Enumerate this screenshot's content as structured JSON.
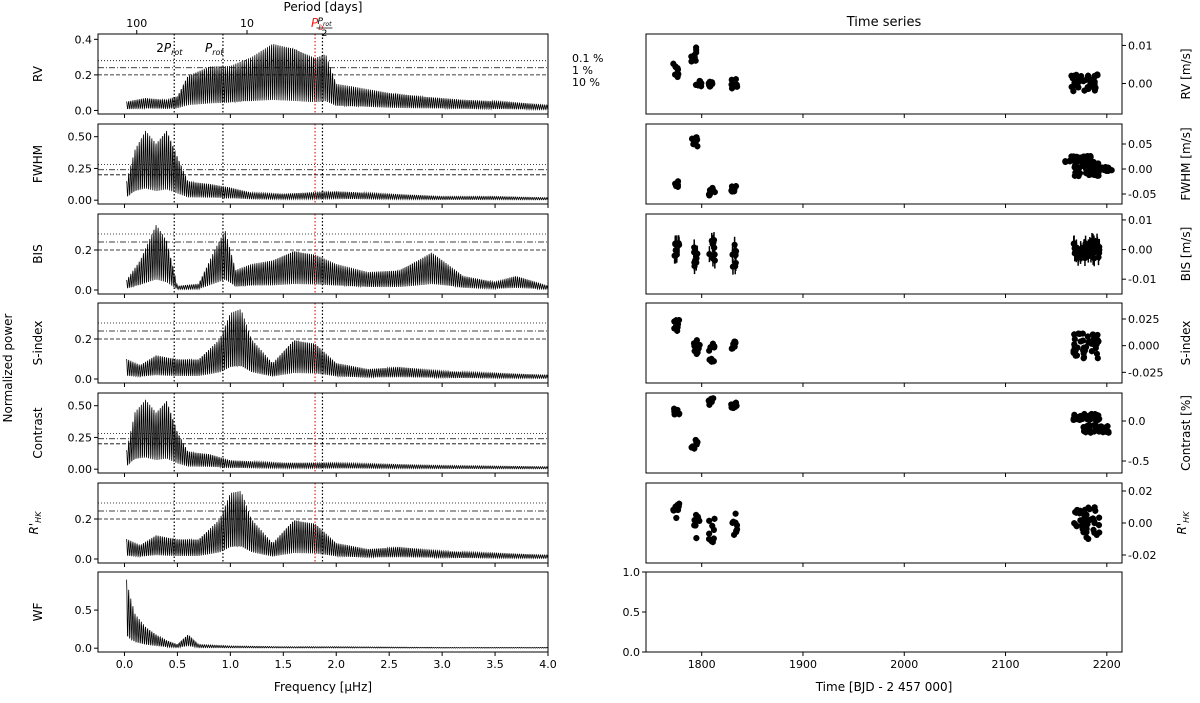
{
  "title_right": "Time series",
  "top_axis_label": "Period [days]",
  "top_axis_ticks": [
    {
      "label": "100",
      "period": 100
    },
    {
      "label": "10",
      "period": 10
    }
  ],
  "fap_levels": [
    {
      "label": "0.1 %",
      "style": "dotted"
    },
    {
      "label": "1 %",
      "style": "dashdot"
    },
    {
      "label": "10 %",
      "style": "dashed"
    }
  ],
  "markers": [
    {
      "label": "2P",
      "sub": "rot",
      "freq": 0.47,
      "color": "#000000"
    },
    {
      "label": "P",
      "sub": "rot",
      "freq": 0.93,
      "color": "#000000"
    },
    {
      "label": "P",
      "sub": "b",
      "freq": 1.8,
      "color": "#e8201a"
    },
    {
      "frac_num": "P",
      "frac_sub": "rot",
      "frac_den": "2",
      "freq": 1.87,
      "color": "#000000"
    }
  ],
  "periodogram_xlabel": "Frequency [μHz]",
  "time_xlabel": "Time [BJD - 2 457 000]",
  "shared_ylabel": "Normalized power",
  "chart_data": [
    {
      "type": "line",
      "name": "periodograms",
      "x_range": [
        -0.25,
        4.0
      ],
      "x_ticks": [
        "0.0",
        "0.5",
        "1.0",
        "1.5",
        "2.0",
        "2.5",
        "3.0",
        "3.5",
        "4.0"
      ],
      "panels": [
        {
          "ylabel": "RV",
          "ylim": [
            -0.02,
            0.43
          ],
          "yticks": [
            "0.0",
            "0.2",
            "0.4"
          ],
          "fap": [
            0.28,
            0.24,
            0.2
          ],
          "envelope": [
            [
              0.02,
              0.05
            ],
            [
              0.2,
              0.07
            ],
            [
              0.4,
              0.06
            ],
            [
              0.5,
              0.08
            ],
            [
              0.6,
              0.2
            ],
            [
              0.8,
              0.25
            ],
            [
              1.0,
              0.25
            ],
            [
              1.2,
              0.3
            ],
            [
              1.4,
              0.38
            ],
            [
              1.6,
              0.36
            ],
            [
              1.8,
              0.3
            ],
            [
              1.9,
              0.32
            ],
            [
              2.0,
              0.15
            ],
            [
              2.3,
              0.12
            ],
            [
              2.5,
              0.1
            ],
            [
              2.8,
              0.08
            ],
            [
              3.2,
              0.06
            ],
            [
              3.6,
              0.05
            ],
            [
              4.0,
              0.03
            ]
          ]
        },
        {
          "ylabel": "FWHM",
          "ylim": [
            -0.03,
            0.6
          ],
          "yticks": [
            "0.00",
            "0.25",
            "0.50"
          ],
          "fap": [
            0.28,
            0.24,
            0.2
          ],
          "envelope": [
            [
              0.02,
              0.15
            ],
            [
              0.1,
              0.4
            ],
            [
              0.2,
              0.55
            ],
            [
              0.3,
              0.45
            ],
            [
              0.4,
              0.56
            ],
            [
              0.5,
              0.35
            ],
            [
              0.6,
              0.15
            ],
            [
              0.8,
              0.13
            ],
            [
              1.0,
              0.1
            ],
            [
              1.2,
              0.06
            ],
            [
              1.5,
              0.05
            ],
            [
              2.0,
              0.07
            ],
            [
              2.5,
              0.05
            ],
            [
              3.0,
              0.03
            ],
            [
              3.5,
              0.03
            ],
            [
              4.0,
              0.02
            ]
          ]
        },
        {
          "ylabel": "BIS",
          "ylim": [
            -0.02,
            0.38
          ],
          "yticks": [
            "0.0",
            "0.2"
          ],
          "fap": [
            0.28,
            0.24,
            0.2
          ],
          "envelope": [
            [
              0.02,
              0.05
            ],
            [
              0.15,
              0.15
            ],
            [
              0.3,
              0.33
            ],
            [
              0.4,
              0.25
            ],
            [
              0.5,
              0.02
            ],
            [
              0.7,
              0.03
            ],
            [
              0.85,
              0.2
            ],
            [
              0.95,
              0.3
            ],
            [
              1.05,
              0.1
            ],
            [
              1.2,
              0.13
            ],
            [
              1.4,
              0.15
            ],
            [
              1.6,
              0.2
            ],
            [
              1.8,
              0.18
            ],
            [
              2.0,
              0.13
            ],
            [
              2.3,
              0.09
            ],
            [
              2.6,
              0.1
            ],
            [
              2.9,
              0.19
            ],
            [
              3.2,
              0.07
            ],
            [
              3.5,
              0.04
            ],
            [
              3.7,
              0.07
            ],
            [
              4.0,
              0.02
            ]
          ]
        },
        {
          "ylabel": "S-index",
          "ylim": [
            -0.02,
            0.38
          ],
          "yticks": [
            "0.0",
            "0.2"
          ],
          "fap": [
            0.28,
            0.24,
            0.2
          ],
          "envelope": [
            [
              0.02,
              0.1
            ],
            [
              0.15,
              0.07
            ],
            [
              0.3,
              0.12
            ],
            [
              0.5,
              0.1
            ],
            [
              0.7,
              0.1
            ],
            [
              0.9,
              0.2
            ],
            [
              1.0,
              0.33
            ],
            [
              1.1,
              0.35
            ],
            [
              1.2,
              0.2
            ],
            [
              1.4,
              0.08
            ],
            [
              1.6,
              0.2
            ],
            [
              1.8,
              0.18
            ],
            [
              2.0,
              0.08
            ],
            [
              2.3,
              0.05
            ],
            [
              2.6,
              0.06
            ],
            [
              3.0,
              0.04
            ],
            [
              3.5,
              0.03
            ],
            [
              4.0,
              0.02
            ]
          ]
        },
        {
          "ylabel": "Contrast",
          "ylim": [
            -0.03,
            0.6
          ],
          "yticks": [
            "0.00",
            "0.25",
            "0.50"
          ],
          "fap": [
            0.28,
            0.24,
            0.2
          ],
          "envelope": [
            [
              0.02,
              0.15
            ],
            [
              0.1,
              0.45
            ],
            [
              0.2,
              0.55
            ],
            [
              0.3,
              0.45
            ],
            [
              0.4,
              0.55
            ],
            [
              0.5,
              0.3
            ],
            [
              0.6,
              0.14
            ],
            [
              0.8,
              0.12
            ],
            [
              1.0,
              0.07
            ],
            [
              1.5,
              0.05
            ],
            [
              2.0,
              0.05
            ],
            [
              2.5,
              0.04
            ],
            [
              3.0,
              0.03
            ],
            [
              4.0,
              0.02
            ]
          ]
        },
        {
          "ylabel": "R'HK",
          "ylim": [
            -0.02,
            0.38
          ],
          "yticks": [
            "0.0",
            "0.2"
          ],
          "fap": [
            0.28,
            0.24,
            0.2
          ],
          "envelope": [
            [
              0.02,
              0.1
            ],
            [
              0.15,
              0.07
            ],
            [
              0.3,
              0.12
            ],
            [
              0.5,
              0.1
            ],
            [
              0.7,
              0.1
            ],
            [
              0.9,
              0.2
            ],
            [
              1.0,
              0.33
            ],
            [
              1.1,
              0.34
            ],
            [
              1.2,
              0.2
            ],
            [
              1.4,
              0.08
            ],
            [
              1.6,
              0.2
            ],
            [
              1.8,
              0.18
            ],
            [
              2.0,
              0.08
            ],
            [
              2.3,
              0.05
            ],
            [
              2.6,
              0.06
            ],
            [
              3.0,
              0.04
            ],
            [
              3.5,
              0.03
            ],
            [
              4.0,
              0.02
            ]
          ]
        },
        {
          "ylabel": "WF",
          "ylim": [
            -0.05,
            1.0
          ],
          "yticks": [
            "0.0",
            "0.5"
          ],
          "fap": [],
          "envelope": [
            [
              0.02,
              0.9
            ],
            [
              0.05,
              0.7
            ],
            [
              0.1,
              0.45
            ],
            [
              0.2,
              0.28
            ],
            [
              0.3,
              0.18
            ],
            [
              0.4,
              0.1
            ],
            [
              0.5,
              0.05
            ],
            [
              0.6,
              0.18
            ],
            [
              0.7,
              0.05
            ],
            [
              1.0,
              0.03
            ],
            [
              1.5,
              0.02
            ],
            [
              2.0,
              0.02
            ],
            [
              3.0,
              0.01
            ],
            [
              4.0,
              0.01
            ]
          ]
        }
      ]
    },
    {
      "type": "scatter",
      "name": "time_series",
      "x_range": [
        1745,
        2215
      ],
      "x_ticks": [
        "1800",
        "1900",
        "2000",
        "2100",
        "2200"
      ],
      "panels": [
        {
          "ylabel": "RV [m/s]",
          "ylim": [
            -0.008,
            0.013
          ],
          "yticks": [
            "0.00",
            "0.01"
          ],
          "groups": [
            [
              1775,
              0.0035,
              0.002
            ],
            [
              1792,
              0.007,
              0.003
            ],
            [
              1797,
              0.0,
              0.0008
            ],
            [
              1808,
              0.0,
              0.0012
            ],
            [
              1832,
              0.0,
              0.0015
            ],
            [
              2178,
              0.0002,
              0.0022
            ]
          ]
        },
        {
          "ylabel": "FWHM [m/s]",
          "ylim": [
            -0.07,
            0.09
          ],
          "yticks": [
            "0.05",
            "0.00",
            "-0.05"
          ],
          "groups": [
            [
              1775,
              -0.03,
              0.006
            ],
            [
              1793,
              0.055,
              0.01
            ],
            [
              1810,
              -0.045,
              0.008
            ],
            [
              1832,
              -0.04,
              0.006
            ],
            [
              2172,
              0.02,
              0.006
            ],
            [
              2180,
              0.0,
              0.015
            ],
            [
              2192,
              0.0,
              0.004
            ]
          ]
        },
        {
          "ylabel": "BIS [m/s]",
          "ylim": [
            -0.015,
            0.012
          ],
          "yticks": [
            "0.01",
            "0.00",
            "-0.01"
          ],
          "groups": [
            [
              1775,
              0.001,
              0.004
            ],
            [
              1795,
              -0.002,
              0.004
            ],
            [
              1810,
              0.0,
              0.004
            ],
            [
              1832,
              -0.002,
              0.004
            ],
            [
              2180,
              0.0,
              0.003
            ]
          ]
        },
        {
          "ylabel": "S-index",
          "ylim": [
            -0.035,
            0.04
          ],
          "yticks": [
            "0.025",
            "0.000",
            "-0.025"
          ],
          "groups": [
            [
              1775,
              0.018,
              0.006
            ],
            [
              1795,
              0.0,
              0.008
            ],
            [
              1810,
              -0.005,
              0.01
            ],
            [
              1832,
              0.0,
              0.005
            ],
            [
              2180,
              0.0,
              0.012
            ]
          ]
        },
        {
          "ylabel": "Contrast [%]",
          "ylim": [
            -0.65,
            0.35
          ],
          "yticks": [
            "0.0",
            "-0.5"
          ],
          "groups": [
            [
              1775,
              0.12,
              0.04
            ],
            [
              1793,
              -0.3,
              0.1
            ],
            [
              1810,
              0.25,
              0.05
            ],
            [
              1832,
              0.2,
              0.04
            ],
            [
              2180,
              0.05,
              0.04
            ],
            [
              2190,
              -0.1,
              0.05
            ]
          ]
        },
        {
          "ylabel": "R'HK",
          "ylim": [
            -0.025,
            0.025
          ],
          "yticks": [
            "0.02",
            "0.00",
            "-0.02"
          ],
          "groups": [
            [
              1775,
              0.008,
              0.005
            ],
            [
              1795,
              -0.002,
              0.008
            ],
            [
              1810,
              -0.005,
              0.008
            ],
            [
              1832,
              0.0,
              0.008
            ],
            [
              2180,
              0.0,
              0.01
            ]
          ]
        },
        {
          "ylabel": "",
          "ylim": [
            0.0,
            1.0
          ],
          "yticks": [
            "0.0",
            "0.5",
            "1.0"
          ],
          "groups": []
        }
      ]
    }
  ]
}
